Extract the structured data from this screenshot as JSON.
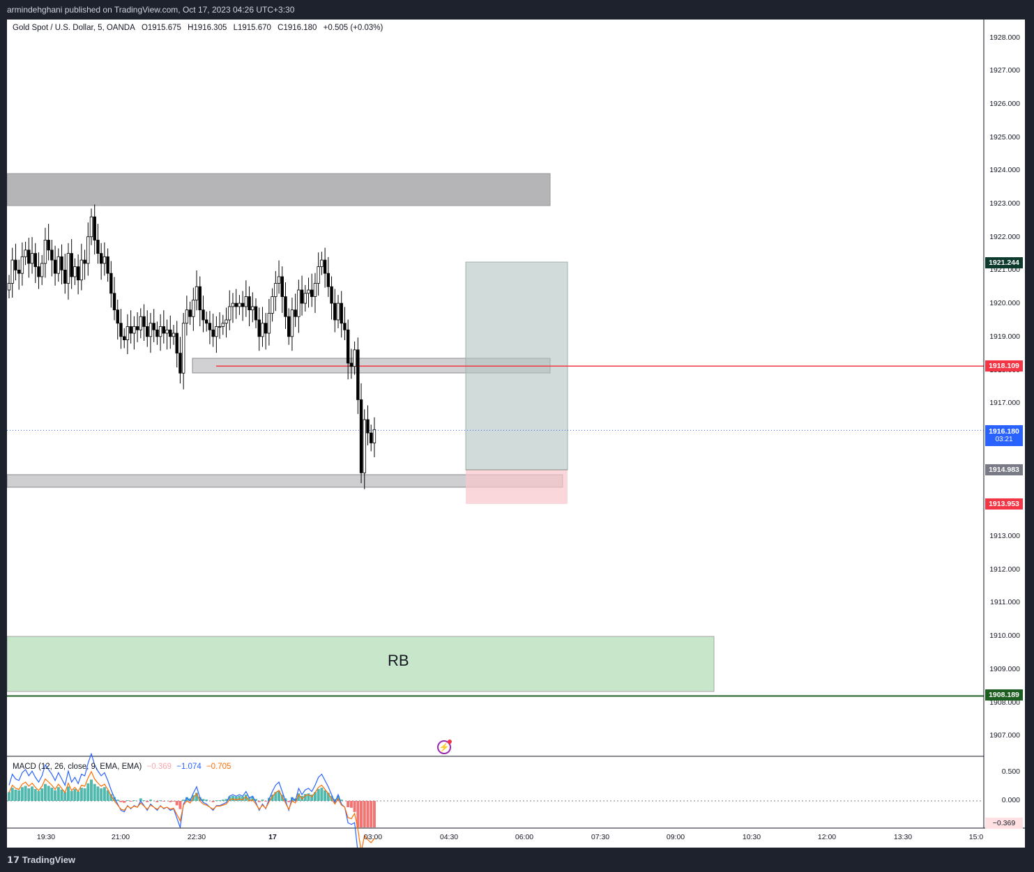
{
  "header": {
    "published": "armindehghani published on TradingView.com, Oct 17, 2023 04:26 UTC+3:30"
  },
  "legend": {
    "symbol": "Gold Spot / U.S. Dollar, 5, OANDA",
    "open": "O1915.675",
    "high": "H1916.305",
    "low": "L1915.670",
    "close": "C1916.180",
    "change": "+0.505 (+0.03%)"
  },
  "price_axis": {
    "ticks": [
      "1928.000",
      "1927.000",
      "1926.000",
      "1925.000",
      "1924.000",
      "1923.000",
      "1922.000",
      "1921.000",
      "1920.000",
      "1919.000",
      "1918.000",
      "1917.000",
      "1916.000",
      "1915.000",
      "1914.000",
      "1913.000",
      "1912.000",
      "1911.000",
      "1910.000",
      "1909.000",
      "1908.000",
      "1907.000"
    ],
    "tick_values": [
      1928,
      1927,
      1926,
      1925,
      1924,
      1923,
      1922,
      1921,
      1920,
      1919,
      1918,
      1917,
      1916,
      1915,
      1914,
      1913,
      1912,
      1911,
      1910,
      1909,
      1908,
      1907
    ]
  },
  "badges": {
    "target": {
      "text": "1921.244",
      "value": 1921.244,
      "color": "#0c3b2e"
    },
    "entry": {
      "text": "1918.109",
      "value": 1918.109,
      "color": "#f23645"
    },
    "last": {
      "text": "1916.180",
      "sub": "03:21",
      "value": 1916.18,
      "color": "#2962ff"
    },
    "pos_line": {
      "text": "1914.983",
      "value": 1914.983,
      "color": "#787b86"
    },
    "stop": {
      "text": "1913.953",
      "value": 1913.953,
      "color": "#f23645"
    },
    "support": {
      "text": "1908.189",
      "value": 1908.189,
      "color": "#1b5e20"
    }
  },
  "time_axis": {
    "labels": [
      "19:30",
      "21:00",
      "22:30",
      "17",
      "03:00",
      "04:30",
      "06:00",
      "07:30",
      "09:00",
      "10:30",
      "12:00",
      "13:30",
      "15:0"
    ]
  },
  "zones": {
    "rb_label": "RB"
  },
  "macd": {
    "title": "MACD (12, 26, close, 9, EMA, EMA)",
    "hist": "−0.369",
    "macd": "−1.074",
    "signal": "−0.705",
    "axis_ticks": [
      "0.500",
      "0.000"
    ],
    "axis_values": [
      0.5,
      0.0
    ],
    "current_badge": "−0.369"
  },
  "colors": {
    "up": "#ffffff",
    "down": "#000000",
    "macd_line": "#2962ff",
    "signal_line": "#ff6d00",
    "hist_pos": "#26a69a",
    "hist_neg": "#ef5350"
  },
  "chart_data": {
    "type": "candlestick",
    "closes": [
      1920.6,
      1921.3,
      1921.0,
      1920.9,
      1921.4,
      1921.6,
      1921.2,
      1921.5,
      1921.1,
      1920.8,
      1921.2,
      1921.9,
      1921.6,
      1921.3,
      1920.9,
      1921.4,
      1921.0,
      1920.6,
      1921.5,
      1920.8,
      1921.1,
      1920.7,
      1921.3,
      1921.2,
      1922.0,
      1922.6,
      1921.9,
      1921.5,
      1921.2,
      1921.4,
      1920.9,
      1920.3,
      1919.8,
      1919.4,
      1919.0,
      1918.9,
      1919.3,
      1919.1,
      1919.3,
      1919.2,
      1919.6,
      1919.3,
      1919.0,
      1919.4,
      1919.2,
      1919.0,
      1919.3,
      1919.1,
      1919.2,
      1919.0,
      1919.1,
      1918.5,
      1917.9,
      1919.4,
      1919.8,
      1919.6,
      1920.1,
      1920.5,
      1919.8,
      1919.5,
      1919.4,
      1919.2,
      1919.0,
      1919.3,
      1919.3,
      1919.4,
      1919.5,
      1919.9,
      1920.0,
      1919.9,
      1920.0,
      1919.9,
      1920.2,
      1919.8,
      1919.9,
      1919.5,
      1919.0,
      1919.4,
      1919.1,
      1919.7,
      1920.2,
      1920.6,
      1920.8,
      1920.2,
      1919.6,
      1919.0,
      1919.8,
      1919.6,
      1920.4,
      1920.0,
      1920.3,
      1920.4,
      1920.2,
      1920.6,
      1921.1,
      1921.3,
      1920.9,
      1920.5,
      1920.0,
      1919.5,
      1920.0,
      1919.4,
      1919.2,
      1918.2,
      1918.1,
      1918.6,
      1917.1,
      1914.9,
      1916.5,
      1916.1,
      1915.8,
      1916.2
    ]
  }
}
